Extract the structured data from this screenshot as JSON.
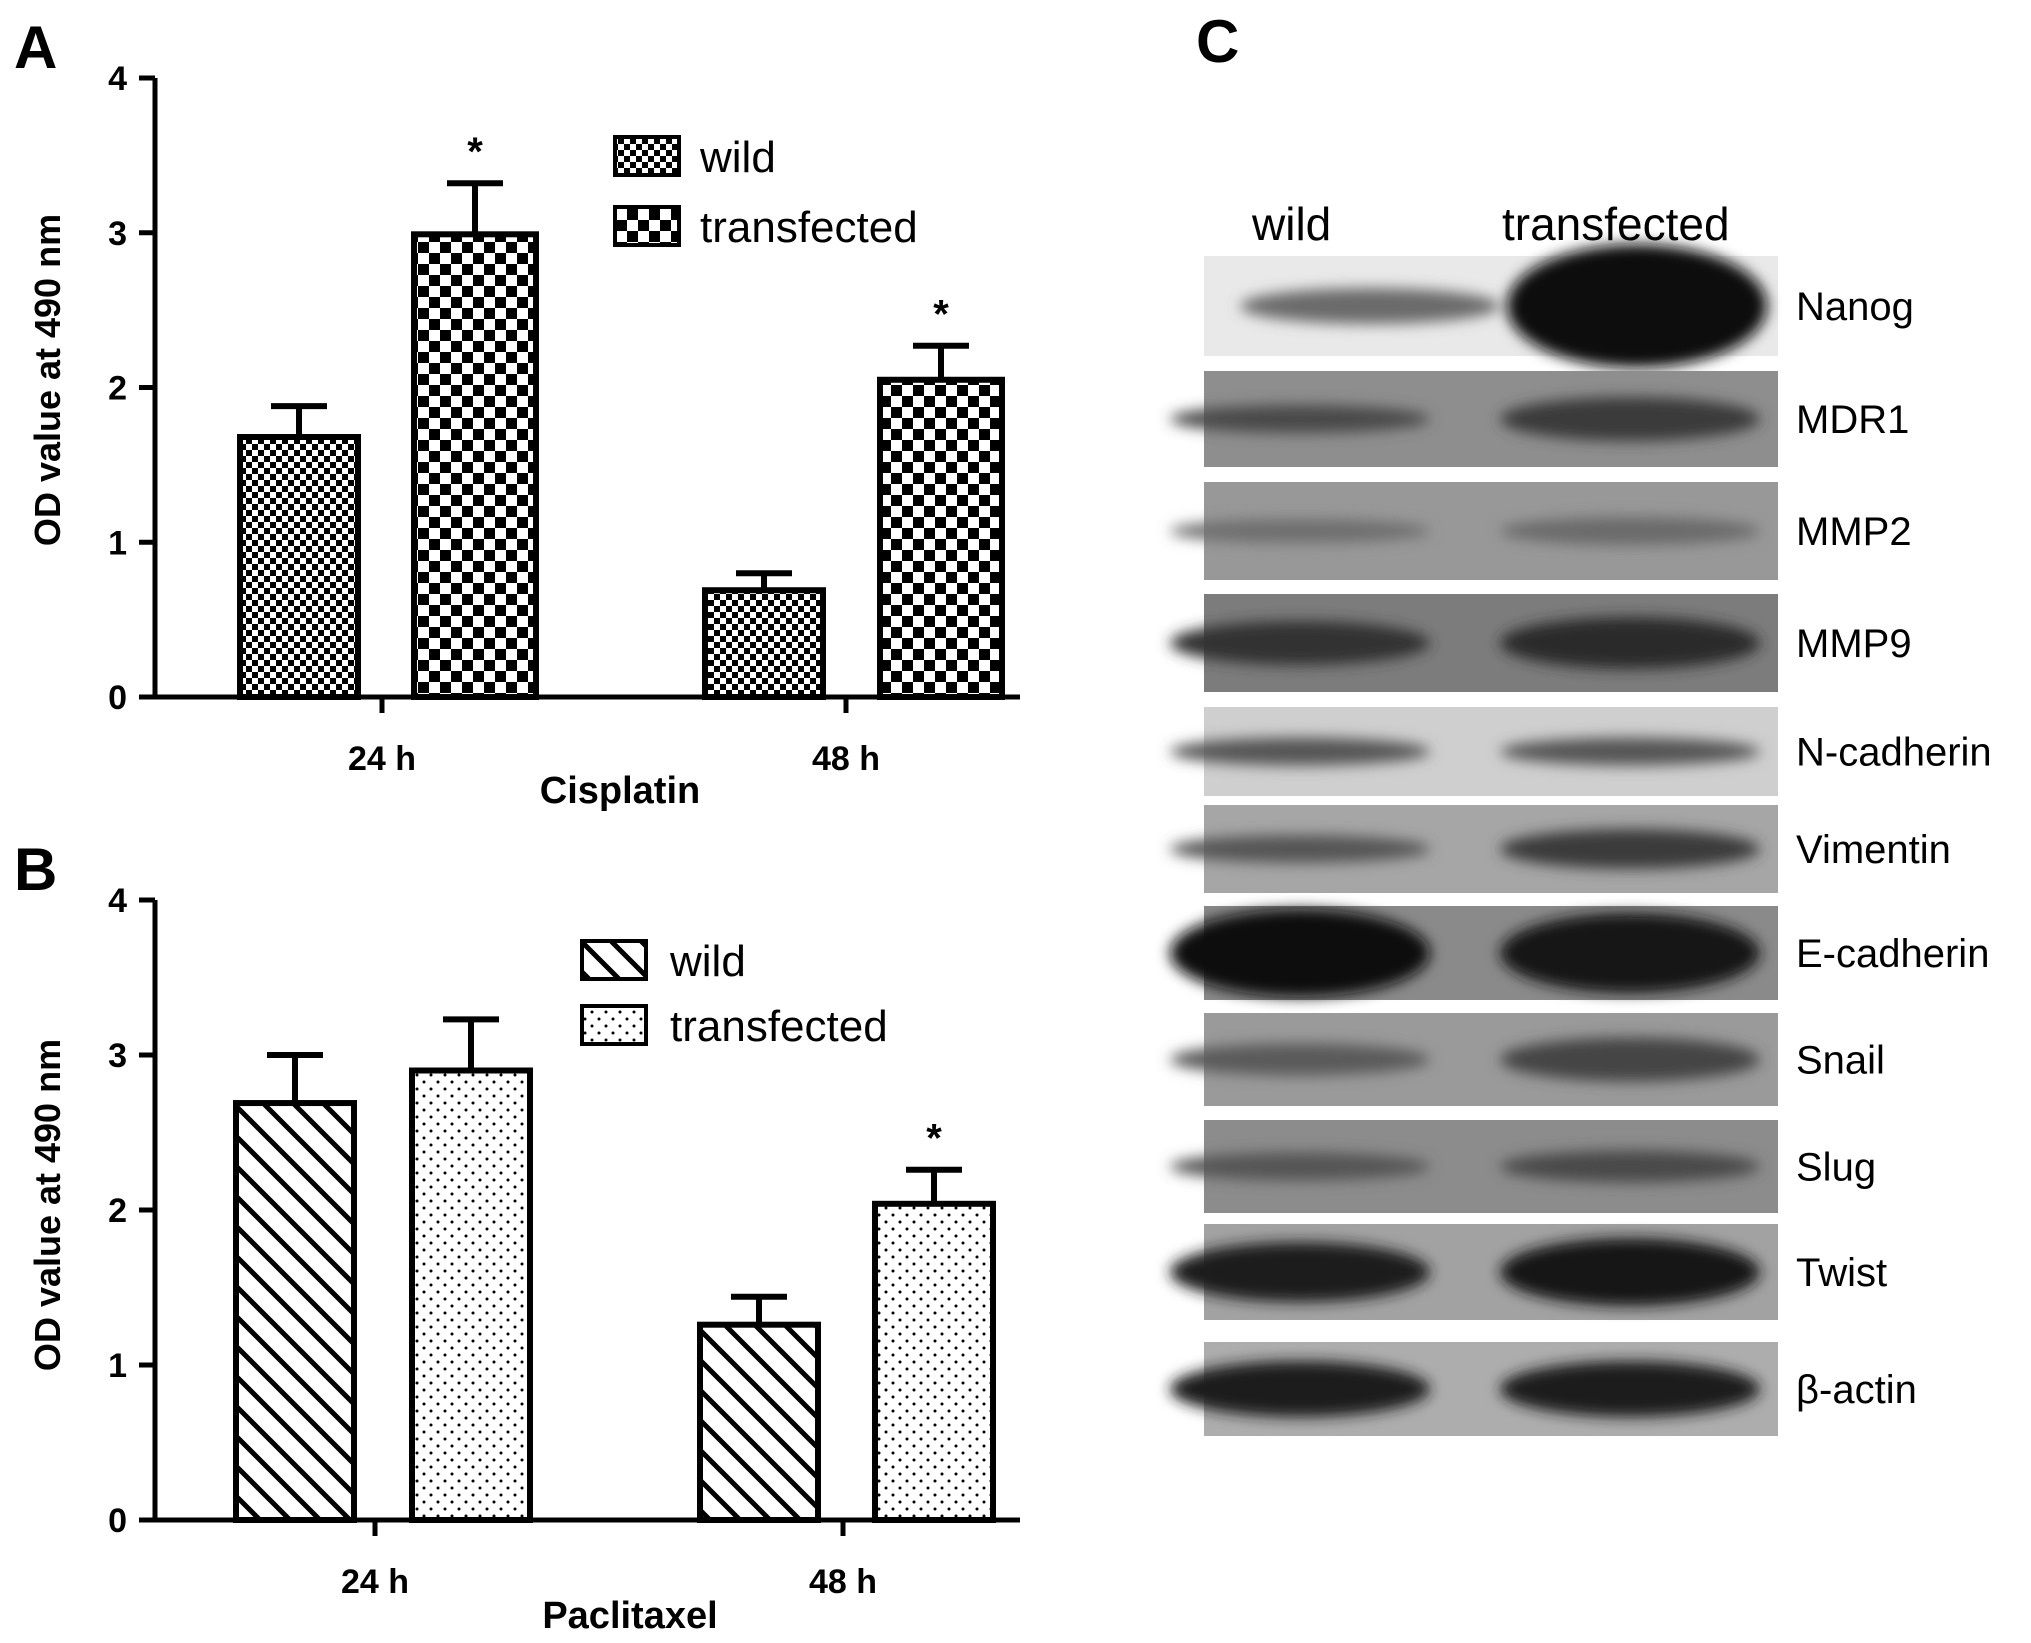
{
  "panels": {
    "a": "A",
    "b": "B",
    "c": "C"
  },
  "colors": {
    "bar_stroke": "#000000",
    "blot_bg": "#b8b8b8",
    "band": "#1a1a1a"
  },
  "chart_data": [
    {
      "type": "bar",
      "panel": "A",
      "categories": [
        "24 h",
        "48 h"
      ],
      "series": [
        {
          "name": "wild",
          "values": [
            1.68,
            0.69
          ],
          "errors": [
            0.2,
            0.11
          ],
          "pattern": "fine-checker"
        },
        {
          "name": "transfected",
          "values": [
            2.99,
            2.05
          ],
          "errors": [
            0.33,
            0.22
          ],
          "pattern": "coarse-checker"
        }
      ],
      "significance": [
        {
          "series": "transfected",
          "category": "24 h",
          "mark": "*"
        },
        {
          "series": "transfected",
          "category": "48 h",
          "mark": "*"
        }
      ],
      "title": "",
      "xlabel": "Cisplatin",
      "ylabel": "OD value at 490 nm",
      "ylim": [
        0,
        4
      ],
      "yticks": [
        "0",
        "1",
        "2",
        "3",
        "4"
      ],
      "legend_position": "top-right",
      "grid": false
    },
    {
      "type": "bar",
      "panel": "B",
      "categories": [
        "24 h",
        "48 h"
      ],
      "series": [
        {
          "name": "wild",
          "values": [
            2.69,
            1.26
          ],
          "errors": [
            0.31,
            0.18
          ],
          "pattern": "diagonal-hatch"
        },
        {
          "name": "transfected",
          "values": [
            2.9,
            2.04
          ],
          "errors": [
            0.33,
            0.22
          ],
          "pattern": "dots"
        }
      ],
      "significance": [
        {
          "series": "transfected",
          "category": "48 h",
          "mark": "*"
        }
      ],
      "title": "",
      "xlabel": "Paclitaxel",
      "ylabel": "OD value at 490 nm",
      "ylim": [
        0,
        4
      ],
      "yticks": [
        "0",
        "1",
        "2",
        "3",
        "4"
      ],
      "legend_position": "top-right",
      "grid": false
    }
  ],
  "western_blot": {
    "lanes": [
      "wild",
      "transfected"
    ],
    "proteins": [
      "Nanog",
      "MDR1",
      "MMP2",
      "MMP9",
      "N-cadherin",
      "Vimentin",
      "E-cadherin",
      "Snail",
      "Slug",
      "Twist",
      "β-actin"
    ]
  }
}
